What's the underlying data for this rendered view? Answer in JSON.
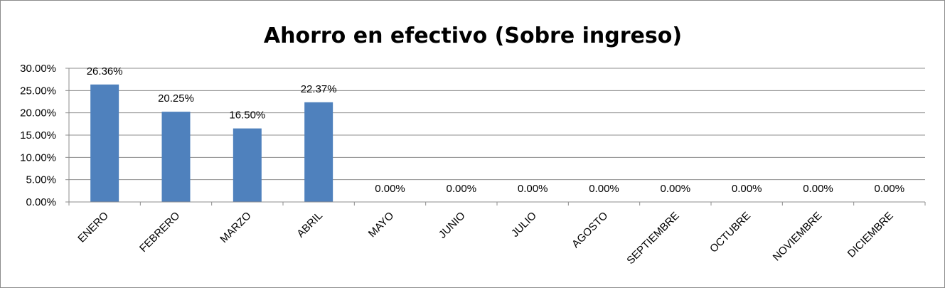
{
  "chart_data": {
    "type": "bar",
    "title": "Ahorro en efectivo (Sobre ingreso)",
    "categories": [
      "ENERO",
      "FEBRERO",
      "MARZO",
      "ABRIL",
      "MAYO",
      "JUNIO",
      "JULIO",
      "AGOSTO",
      "SEPTIEMBRE",
      "OCTUBRE",
      "NOVIEMBRE",
      "DICIEMBRE"
    ],
    "values": [
      26.36,
      20.25,
      16.5,
      22.37,
      0,
      0,
      0,
      0,
      0,
      0,
      0,
      0
    ],
    "data_labels": [
      "26.36%",
      "20.25%",
      "16.50%",
      "22.37%",
      "0.00%",
      "0.00%",
      "0.00%",
      "0.00%",
      "0.00%",
      "0.00%",
      "0.00%",
      "0.00%"
    ],
    "y_ticks": [
      0,
      5,
      10,
      15,
      20,
      25,
      30
    ],
    "y_tick_labels": [
      "0.00%",
      "5.00%",
      "10.00%",
      "15.00%",
      "20.00%",
      "25.00%",
      "30.00%"
    ],
    "ylim": [
      0,
      30
    ],
    "grid": true,
    "legend": "none",
    "bar_color": "#4f81bd",
    "grid_color": "#8c8c8c"
  }
}
